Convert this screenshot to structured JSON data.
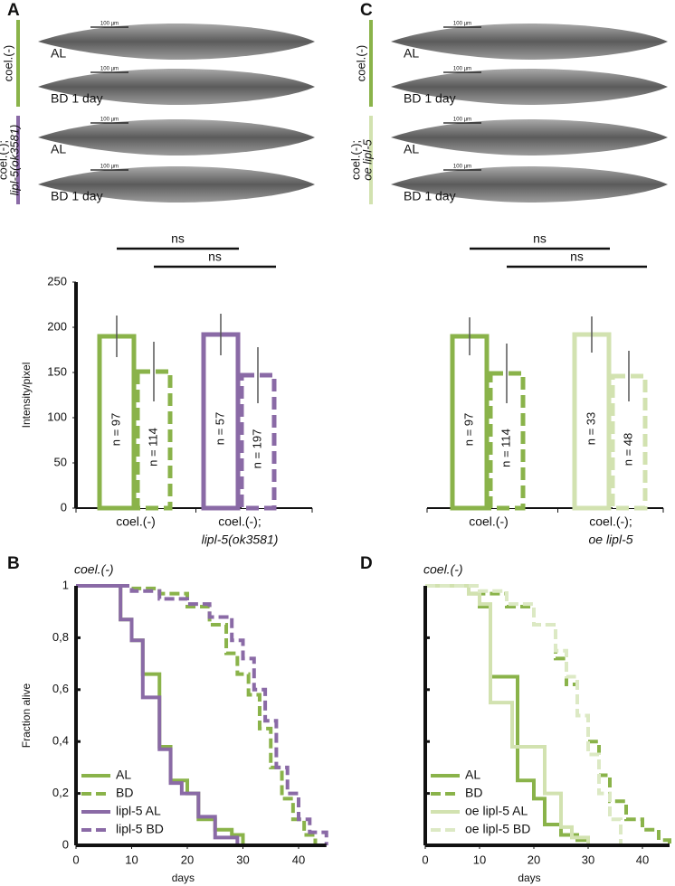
{
  "panel_labels": [
    "A",
    "B",
    "C",
    "D"
  ],
  "micrographs": [
    {
      "groups": [
        {
          "label": [
            "coel.(-)"
          ],
          "color": "#8ab34a",
          "images": [
            {
              "label": "AL",
              "scale_bar": "100 µm"
            },
            {
              "label": "BD 1 day",
              "scale_bar": "100 µm"
            }
          ]
        },
        {
          "label": [
            "coel.(-);",
            "lipl-5(ok3581)"
          ],
          "color": "#8a6aa6",
          "images": [
            {
              "label": "AL",
              "scale_bar": "100 µm"
            },
            {
              "label": "BD 1 day",
              "scale_bar": "100 µm"
            }
          ]
        }
      ]
    },
    {
      "groups": [
        {
          "label": [
            "coel.(-)"
          ],
          "color": "#8ab34a",
          "images": [
            {
              "label": "AL",
              "scale_bar": "100 µm"
            },
            {
              "label": "BD 1 day",
              "scale_bar": "100 µm"
            }
          ]
        },
        {
          "label": [
            "coel.(-);",
            "oe lipl-5"
          ],
          "color": "#d2e2b0",
          "images": [
            {
              "label": "AL",
              "scale_bar": "100 µm"
            },
            {
              "label": "BD 1 day",
              "scale_bar": "100 µm"
            }
          ]
        }
      ]
    }
  ],
  "chart_data": [
    {
      "type": "bar",
      "ylabel": "Intensity/pixel",
      "ylim": [
        0,
        250
      ],
      "yticks": [
        0,
        50,
        100,
        150,
        200,
        250
      ],
      "categories": [
        [
          "coel.(-)"
        ],
        [
          "coel.(-);",
          "lipl-5(ok3581)"
        ]
      ],
      "category_colors": [
        "#8ab34a",
        "#8a6aa6"
      ],
      "series": [
        {
          "style": "solid",
          "values": [
            190,
            192
          ],
          "errors": [
            23,
            23
          ],
          "n_labels": [
            "n = 97",
            "n = 57"
          ]
        },
        {
          "style": "dashed",
          "values": [
            151,
            147
          ],
          "errors": [
            33,
            31
          ],
          "n_labels": [
            "n = 114",
            "n = 197"
          ]
        }
      ],
      "significance": [
        {
          "label": "ns",
          "series": 0
        },
        {
          "label": "ns",
          "series": 1
        }
      ]
    },
    {
      "type": "bar",
      "ylim": [
        0,
        250
      ],
      "categories": [
        [
          "coel.(-)"
        ],
        [
          "coel.(-);",
          "oe lipl-5"
        ]
      ],
      "category_colors": [
        "#8ab34a",
        "#d2e2b0"
      ],
      "series": [
        {
          "style": "solid",
          "values": [
            190,
            192
          ],
          "errors": [
            21,
            20
          ],
          "n_labels": [
            "n = 97",
            "n = 33"
          ]
        },
        {
          "style": "dashed",
          "values": [
            149,
            146
          ],
          "errors": [
            33,
            28
          ],
          "n_labels": [
            "n = 114",
            "n = 48"
          ]
        }
      ],
      "significance": [
        {
          "label": "ns",
          "series": 0
        },
        {
          "label": "ns",
          "series": 1
        }
      ]
    },
    {
      "type": "step",
      "title": "coel.(-)",
      "xlabel": "days",
      "ylabel": "Fraction alive",
      "xlim": [
        0,
        45
      ],
      "xticks": [
        0,
        10,
        20,
        30,
        40
      ],
      "ylim": [
        0,
        1
      ],
      "yticks": [
        0,
        {
          "value": 0.2,
          "label": "0,2"
        },
        {
          "value": 0.4,
          "label": "0,4"
        },
        {
          "value": 0.6,
          "label": "0,6"
        },
        {
          "value": 0.8,
          "label": "0,8"
        },
        1
      ],
      "ytick_labels": true,
      "legend": "lower left",
      "series": [
        {
          "name": "AL",
          "color": "#8ab34a",
          "dashed": false,
          "x": [
            0,
            8,
            10,
            12,
            15,
            17,
            20,
            22,
            25,
            28,
            30
          ],
          "values": [
            1,
            0.87,
            0.79,
            0.66,
            0.38,
            0.25,
            0.2,
            0.1,
            0.06,
            0.04,
            0
          ]
        },
        {
          "name": "BD",
          "color": "#8ab34a",
          "dashed": true,
          "x": [
            0,
            5,
            10,
            15,
            20,
            24,
            27,
            29,
            31,
            33,
            35,
            37,
            39,
            41,
            43
          ],
          "values": [
            1,
            1,
            0.99,
            0.97,
            0.92,
            0.85,
            0.74,
            0.66,
            0.58,
            0.45,
            0.3,
            0.18,
            0.1,
            0.04,
            0
          ]
        },
        {
          "name": "lipl-5 AL",
          "color": "#8a6aa6",
          "dashed": false,
          "x": [
            0,
            8,
            10,
            12,
            15,
            17,
            19,
            22,
            25,
            29
          ],
          "values": [
            1,
            0.87,
            0.79,
            0.57,
            0.37,
            0.24,
            0.2,
            0.11,
            0.03,
            0
          ]
        },
        {
          "name": "lipl-5 BD",
          "color": "#8a6aa6",
          "dashed": true,
          "x": [
            0,
            5,
            10,
            15,
            20,
            24,
            28,
            30,
            32,
            34,
            36,
            38,
            40,
            42,
            45
          ],
          "values": [
            1,
            1,
            0.98,
            0.95,
            0.93,
            0.88,
            0.79,
            0.72,
            0.6,
            0.48,
            0.3,
            0.2,
            0.1,
            0.05,
            0
          ]
        }
      ]
    },
    {
      "type": "step",
      "title": "coel.(-)",
      "xlabel": "days",
      "xlim": [
        0,
        45
      ],
      "xticks": [
        0,
        10,
        20,
        30,
        40
      ],
      "ylim": [
        0,
        1
      ],
      "yticks": [
        0,
        0.2,
        0.4,
        0.6,
        0.8,
        1
      ],
      "ytick_labels": false,
      "legend": "lower left",
      "series": [
        {
          "name": "AL",
          "color": "#8ab34a",
          "dashed": false,
          "x": [
            0,
            8,
            10,
            12,
            17,
            20,
            22,
            25,
            28,
            30
          ],
          "values": [
            1,
            0.97,
            0.92,
            0.65,
            0.25,
            0.18,
            0.08,
            0.04,
            0.02,
            0
          ]
        },
        {
          "name": "BD",
          "color": "#8ab34a",
          "dashed": true,
          "x": [
            0,
            10,
            15,
            20,
            24,
            26,
            28,
            30,
            32,
            34,
            37,
            40,
            43,
            45
          ],
          "values": [
            1,
            0.97,
            0.92,
            0.85,
            0.72,
            0.62,
            0.5,
            0.4,
            0.27,
            0.17,
            0.1,
            0.06,
            0.02,
            0
          ]
        },
        {
          "name": "oe lipl-5 AL",
          "color": "#d2e2b0",
          "dashed": false,
          "x": [
            0,
            8,
            10,
            12,
            16,
            22,
            25,
            27,
            30
          ],
          "values": [
            1,
            0.97,
            0.93,
            0.55,
            0.38,
            0.2,
            0.07,
            0.03,
            0
          ]
        },
        {
          "name": "oe lipl-5 BD",
          "color": "#dce9c4",
          "dashed": true,
          "x": [
            0,
            10,
            15,
            20,
            24,
            26,
            28,
            30,
            32,
            34,
            36
          ],
          "values": [
            1,
            0.98,
            0.93,
            0.85,
            0.75,
            0.65,
            0.5,
            0.35,
            0.2,
            0.1,
            0
          ]
        }
      ]
    }
  ]
}
